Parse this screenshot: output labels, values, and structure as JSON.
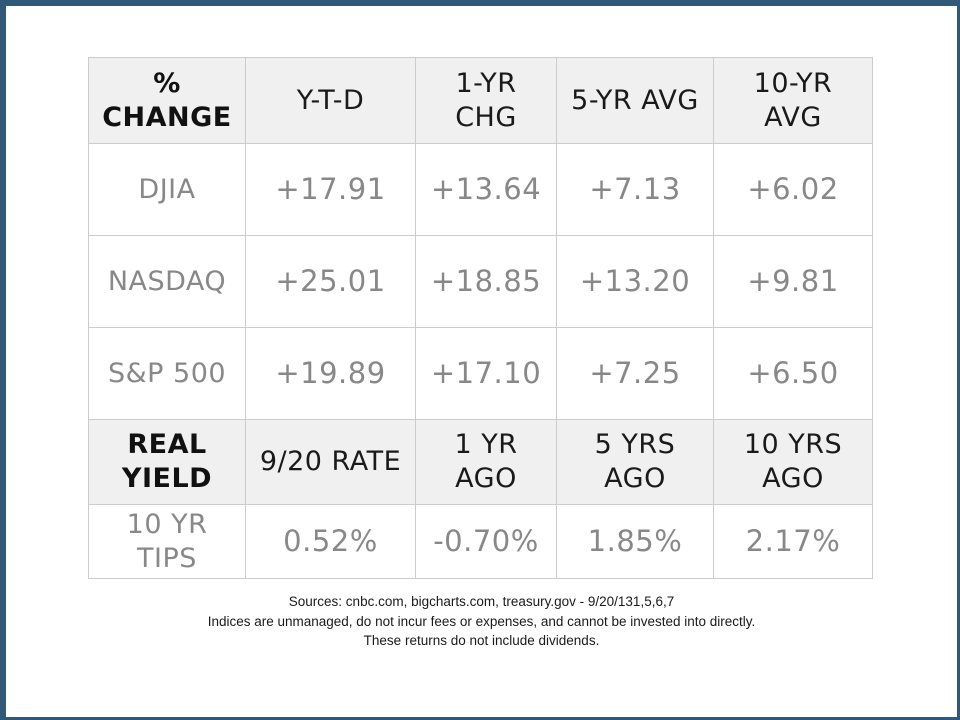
{
  "colors": {
    "frame_blue": "#315977",
    "header_bg": "#f0f0f0",
    "grid_line": "#cccccc",
    "data_text_gray": "#888888",
    "header_text": "#1a1a1a"
  },
  "table": {
    "header_cells": [
      [
        "%",
        "CHANGE"
      ],
      [
        "Y-T-D"
      ],
      [
        "1-YR",
        "CHG"
      ],
      [
        "5-YR AVG"
      ],
      [
        "10-YR",
        "AVG"
      ]
    ],
    "index_rows": [
      {
        "label": [
          "DJIA"
        ],
        "values": [
          "+17.91",
          "+13.64",
          "+7.13",
          "+6.02"
        ]
      },
      {
        "label": [
          "NASDAQ"
        ],
        "values": [
          "+25.01",
          "+18.85",
          "+13.20",
          "+9.81"
        ]
      },
      {
        "label": [
          "S&P 500"
        ],
        "values": [
          "+19.89",
          "+17.10",
          "+7.25",
          "+6.50"
        ]
      }
    ],
    "yield_header_cells": [
      [
        "REAL",
        "YIELD"
      ],
      [
        "9/20 RATE"
      ],
      [
        "1 YR",
        "AGO"
      ],
      [
        "5 YRS",
        "AGO"
      ],
      [
        "10 YRS",
        "AGO"
      ]
    ],
    "yield_row": {
      "label": [
        "10 YR",
        "TIPS"
      ],
      "values": [
        "0.52%",
        "-0.70%",
        "1.85%",
        "2.17%"
      ]
    }
  },
  "footnotes": {
    "line1": "Sources: cnbc.com, bigcharts.com, treasury.gov - 9/20/131,5,6,7",
    "line2": "Indices are unmanaged, do not incur fees or expenses, and cannot be invested into directly.",
    "line3": "These returns do not include dividends."
  }
}
